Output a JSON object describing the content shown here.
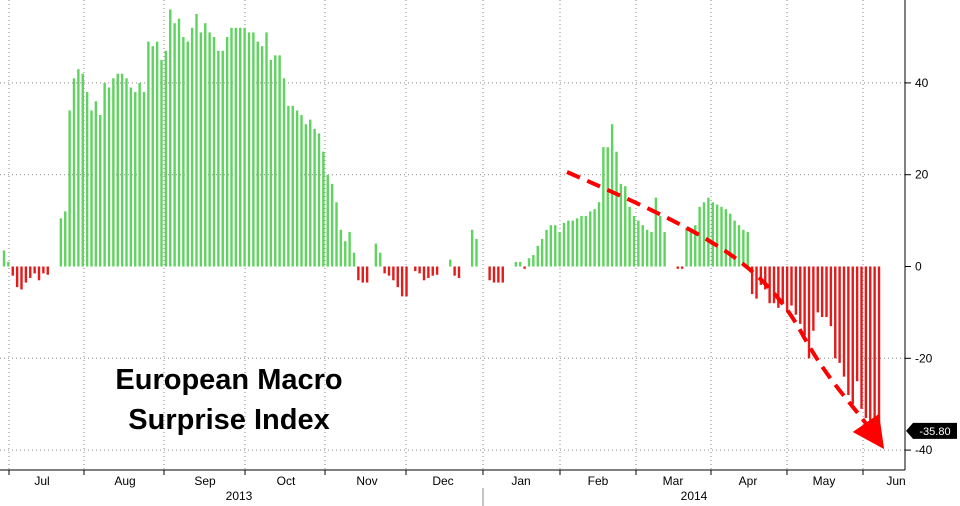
{
  "chart_data": {
    "type": "bar",
    "title_lines": [
      "European Macro",
      "Surprise Index"
    ],
    "ylim": [
      -40,
      57
    ],
    "y_ticks": [
      40,
      20,
      0,
      -20,
      -40
    ],
    "y_tick_labels": [
      "40",
      "20",
      "0",
      "-20",
      "-40"
    ],
    "x_tick_labels": [
      "Jul",
      "Aug",
      "Sep",
      "Oct",
      "Nov",
      "Dec",
      "Jan",
      "Feb",
      "Mar",
      "Apr",
      "May",
      "Jun"
    ],
    "x_year_labels": [
      "2013",
      "2014"
    ],
    "last_value_label": "-35.80",
    "grid": true,
    "colors": {
      "positive": "#5fd35f",
      "negative": "#e21b1b",
      "trend_arrow": "#ff0000",
      "axis": "#000000",
      "grid": "#888888"
    },
    "trend_arrow": "dashed red curved arrow from early Feb to late May",
    "values": [
      3.5,
      1,
      -2,
      -4.5,
      -5,
      -3.5,
      -2.5,
      -1.5,
      -3,
      -1.5,
      -1.8,
      0,
      0,
      10.5,
      12,
      34,
      41,
      43,
      42,
      38,
      34,
      36,
      33,
      40,
      39,
      41,
      42,
      42,
      41,
      39,
      38,
      40,
      38,
      49,
      48,
      49,
      45,
      47,
      56,
      53,
      54,
      50,
      49,
      52,
      55,
      51,
      53,
      51,
      50,
      47,
      47,
      50,
      52,
      52,
      52,
      52,
      51,
      51,
      49,
      48,
      51,
      45,
      46,
      46,
      41,
      35,
      35,
      34,
      33,
      31,
      32,
      30,
      29,
      25,
      20,
      18,
      14,
      8,
      5.5,
      7.5,
      3,
      -3,
      -3.5,
      -3.5,
      0,
      5,
      3,
      -1.5,
      -2,
      -3,
      -4.5,
      -6.5,
      -6.5,
      0,
      -1,
      -1.5,
      -3,
      -2.5,
      -2,
      -1.8,
      0,
      0,
      1.5,
      -2,
      -2.5,
      0,
      0,
      8,
      6,
      0,
      0,
      -3,
      -3.5,
      -3.5,
      -3.5,
      0,
      0,
      1,
      1,
      -0.5,
      1.8,
      2.5,
      4.5,
      6,
      8,
      9,
      9,
      7.5,
      9.5,
      10,
      10,
      10.5,
      11,
      11,
      12,
      12.5,
      14,
      26,
      26,
      31,
      25,
      18,
      17.5,
      13,
      11,
      10,
      9,
      8,
      7.5,
      15,
      11,
      7.5,
      0,
      0,
      -0.5,
      -0.5,
      8.5,
      8,
      9,
      13,
      14,
      15,
      14,
      13.5,
      13,
      12.5,
      11.5,
      10,
      9,
      8,
      7.5,
      -6,
      -7,
      -4,
      -5,
      -8,
      -8,
      -9,
      -8,
      -10,
      -8.5,
      -10.5,
      -12.5,
      -15,
      -20,
      -14,
      -10,
      -11,
      -11,
      -13,
      -20,
      -21,
      -24,
      -28,
      -30,
      -25,
      -31,
      -33,
      -36,
      -38,
      -35.8
    ]
  }
}
